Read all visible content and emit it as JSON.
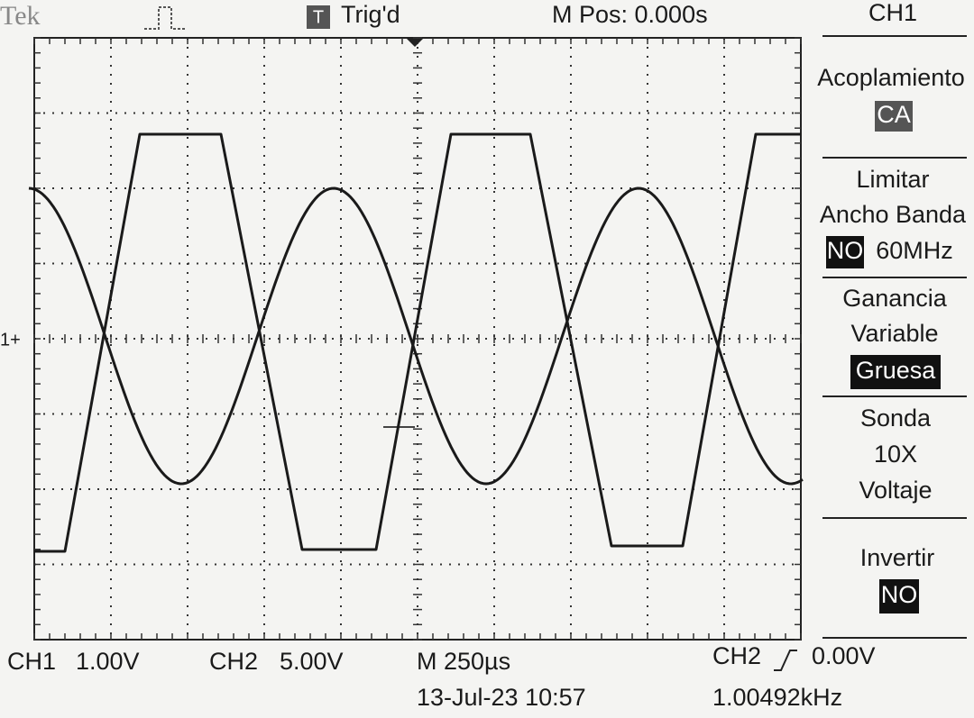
{
  "header": {
    "brand": "Tek",
    "trigger_icon": "T",
    "trigger_status": "Trig'd",
    "position": "M Pos: 0.000s"
  },
  "menu": {
    "title": "CH1",
    "sections": [
      {
        "lines": [
          "Acoplamiento"
        ],
        "value": "CA"
      },
      {
        "lines": [
          "Limitar",
          "Ancho Banda"
        ],
        "value": "NO",
        "extra": "60MHz"
      },
      {
        "lines": [
          "Ganancia",
          "Variable"
        ],
        "value": "Gruesa"
      },
      {
        "lines": [
          "Sonda",
          "10X",
          "Voltaje"
        ]
      },
      {
        "lines": [
          "Invertir"
        ],
        "value": "NO"
      }
    ]
  },
  "footer": {
    "ch1_label": "CH1",
    "ch1_scale": "1.00V",
    "ch2_label": "CH2",
    "ch2_scale": "5.00V",
    "timebase": "M 250µs",
    "trigger_source": "CH2",
    "trigger_level": "0.00V",
    "date_time": "13-Jul-23 10:57",
    "frequency": "1.00492kHz"
  }
}
